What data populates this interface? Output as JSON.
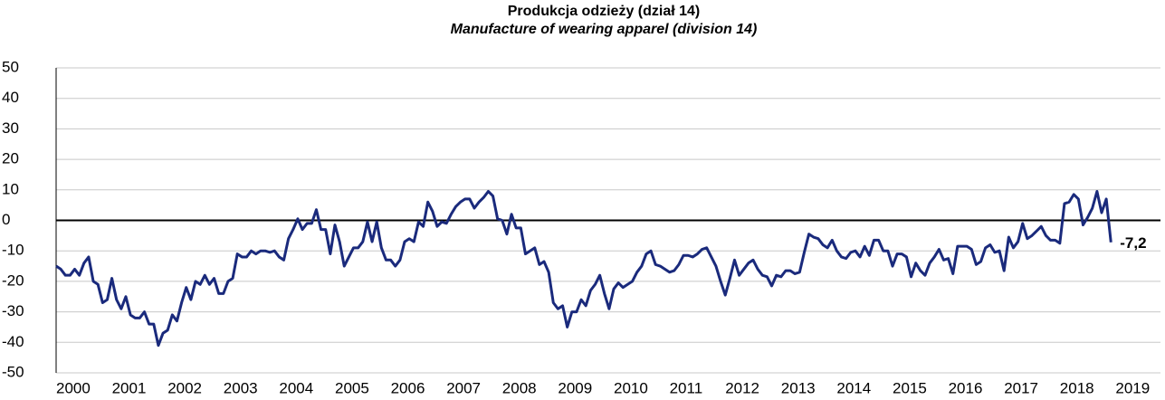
{
  "chart_data": {
    "type": "line",
    "title": "Produkcja odzieży (dział 14)",
    "subtitle": "Manufacture of wearing apparel (division 14)",
    "categories": [
      "2000",
      null,
      null,
      null,
      null,
      null,
      null,
      null,
      null,
      null,
      null,
      null,
      "2001",
      null,
      null,
      null,
      null,
      null,
      null,
      null,
      null,
      null,
      null,
      null,
      "2002",
      null,
      null,
      null,
      null,
      null,
      null,
      null,
      null,
      null,
      null,
      null,
      "2003",
      null,
      null,
      null,
      null,
      null,
      null,
      null,
      null,
      null,
      null,
      null,
      "2004",
      null,
      null,
      null,
      null,
      null,
      null,
      null,
      null,
      null,
      null,
      null,
      "2005",
      null,
      null,
      null,
      null,
      null,
      null,
      null,
      null,
      null,
      null,
      null,
      "2006",
      null,
      null,
      null,
      null,
      null,
      null,
      null,
      null,
      null,
      null,
      null,
      "2007",
      null,
      null,
      null,
      null,
      null,
      null,
      null,
      null,
      null,
      null,
      null,
      "2008",
      null,
      null,
      null,
      null,
      null,
      null,
      null,
      null,
      null,
      null,
      null,
      "2009",
      null,
      null,
      null,
      null,
      null,
      null,
      null,
      null,
      null,
      null,
      null,
      "2010",
      null,
      null,
      null,
      null,
      null,
      null,
      null,
      null,
      null,
      null,
      null,
      "2011",
      null,
      null,
      null,
      null,
      null,
      null,
      null,
      null,
      null,
      null,
      null,
      "2012",
      null,
      null,
      null,
      null,
      null,
      null,
      null,
      null,
      null,
      null,
      null,
      "2013",
      null,
      null,
      null,
      null,
      null,
      null,
      null,
      null,
      null,
      null,
      null,
      "2014",
      null,
      null,
      null,
      null,
      null,
      null,
      null,
      null,
      null,
      null,
      null,
      "2015",
      null,
      null,
      null,
      null,
      null,
      null,
      null,
      null,
      null,
      null,
      null,
      "2016",
      null,
      null,
      null,
      null,
      null,
      null,
      null,
      null,
      null,
      null,
      null,
      "2017",
      null,
      null,
      null,
      null,
      null,
      null,
      null,
      null,
      null,
      null,
      null,
      "2018",
      null,
      null,
      null,
      null,
      null,
      null,
      null,
      null,
      null,
      null,
      null,
      "2019"
    ],
    "series": [
      {
        "color": "#1a2a7c",
        "values": [
          -15,
          -16,
          -18,
          -18,
          -16,
          -18,
          -14,
          -12,
          -20,
          -21,
          -27,
          -26,
          -19,
          -26,
          -29,
          -25,
          -31,
          -32,
          -32,
          -30,
          -34,
          -34,
          -41,
          -37,
          -36,
          -31,
          -33,
          -27,
          -22,
          -26,
          -20,
          -21,
          -18,
          -21,
          -19,
          -24,
          -24,
          -20,
          -19,
          -11,
          -12,
          -12,
          -10,
          -11,
          -10,
          -10,
          -10.5,
          -10,
          -12,
          -13,
          -6,
          -3,
          0.5,
          -3,
          -1,
          -1,
          3.5,
          -3,
          -3,
          -11,
          -1.5,
          -7,
          -15,
          -12,
          -9,
          -9,
          -7,
          -0.5,
          -7,
          -0.5,
          -9,
          -13,
          -13,
          -15,
          -13,
          -7,
          -6,
          -7,
          -0.5,
          -2,
          6,
          3,
          -2,
          -0.5,
          -1,
          2,
          4.5,
          6,
          7,
          7,
          4,
          6,
          7.5,
          9.5,
          8,
          0.5,
          0,
          -4.5,
          2,
          -2.5,
          -2.5,
          -11,
          -10,
          -9,
          -14.5,
          -13.5,
          -17,
          -27,
          -29,
          -28,
          -35,
          -30,
          -30,
          -26,
          -28,
          -23,
          -21,
          -18,
          -24,
          -29,
          -22.5,
          -20.5,
          -22,
          -21,
          -20,
          -17,
          -15,
          -11,
          -10,
          -14.5,
          -15,
          -16,
          -17,
          -16.5,
          -14.5,
          -11.5,
          -11.5,
          -12,
          -11,
          -9.5,
          -9,
          -12,
          -15,
          -20,
          -24.5,
          -19,
          -13,
          -18,
          -16,
          -14,
          -13,
          -16,
          -18,
          -18.5,
          -21.5,
          -18,
          -18.5,
          -16.5,
          -16.5,
          -17.5,
          -17,
          -10.5,
          -4.5,
          -5.5,
          -6,
          -8,
          -9,
          -6.5,
          -10,
          -12,
          -12.5,
          -10.5,
          -10,
          -12,
          -8.5,
          -11.5,
          -6.5,
          -6.5,
          -10,
          -10,
          -15,
          -11,
          -11,
          -12,
          -18.5,
          -14,
          -16.5,
          -18,
          -14,
          -12,
          -9.5,
          -13,
          -12.5,
          -17.5,
          -8.5,
          -8.5,
          -8.5,
          -9.5,
          -14.5,
          -13.5,
          -9,
          -8,
          -10.5,
          -10,
          -16.5,
          -5.5,
          -9,
          -7,
          -1,
          -6,
          -5,
          -3.5,
          -2,
          -5,
          -6.5,
          -6.5,
          -7.5,
          5.5,
          6,
          8.5,
          7,
          -1.5,
          1,
          4,
          9.5,
          2.5,
          7,
          -7.2,
          null
        ],
        "value_labels": [
          null,
          null,
          null,
          null,
          null,
          null,
          null,
          null,
          null,
          null,
          null,
          null,
          null,
          null,
          null,
          null,
          null,
          null,
          null,
          null,
          null,
          null,
          null,
          null,
          null,
          null,
          null,
          null,
          null,
          null,
          null,
          null,
          null,
          null,
          null,
          null,
          null,
          null,
          null,
          null,
          null,
          null,
          null,
          null,
          null,
          null,
          null,
          null,
          null,
          null,
          null,
          null,
          null,
          null,
          null,
          null,
          null,
          null,
          null,
          null,
          null,
          null,
          null,
          null,
          null,
          null,
          null,
          null,
          null,
          null,
          null,
          null,
          null,
          null,
          null,
          null,
          null,
          null,
          null,
          null,
          null,
          null,
          null,
          null,
          null,
          null,
          null,
          null,
          null,
          null,
          null,
          null,
          null,
          null,
          null,
          null,
          null,
          null,
          null,
          null,
          null,
          null,
          null,
          null,
          null,
          null,
          null,
          null,
          null,
          null,
          null,
          null,
          null,
          null,
          null,
          null,
          null,
          null,
          null,
          null,
          null,
          null,
          null,
          null,
          null,
          null,
          null,
          null,
          null,
          null,
          null,
          null,
          null,
          null,
          null,
          null,
          null,
          null,
          null,
          null,
          null,
          null,
          null,
          null,
          null,
          null,
          null,
          null,
          null,
          null,
          null,
          null,
          null,
          null,
          null,
          null,
          null,
          null,
          null,
          null,
          null,
          null,
          null,
          null,
          null,
          null,
          null,
          null,
          null,
          null,
          null,
          null,
          null,
          null,
          null,
          null,
          null,
          null,
          null,
          null,
          null,
          null,
          null,
          null,
          null,
          null,
          null,
          null,
          null,
          null,
          null,
          null,
          null,
          null,
          null,
          null,
          null,
          null,
          null,
          null,
          null,
          null,
          null,
          null,
          null,
          null,
          null,
          null,
          null,
          null,
          null,
          null,
          null,
          null,
          null,
          null,
          null,
          null,
          null,
          null,
          null,
          null,
          null,
          null,
          null,
          null,
          null,
          "-7,2",
          null
        ]
      }
    ],
    "ylim": [
      -50,
      50
    ],
    "yticks": [
      -50,
      -40,
      -30,
      -20,
      -10,
      0,
      10,
      20,
      30,
      40,
      50
    ],
    "grid": true
  }
}
